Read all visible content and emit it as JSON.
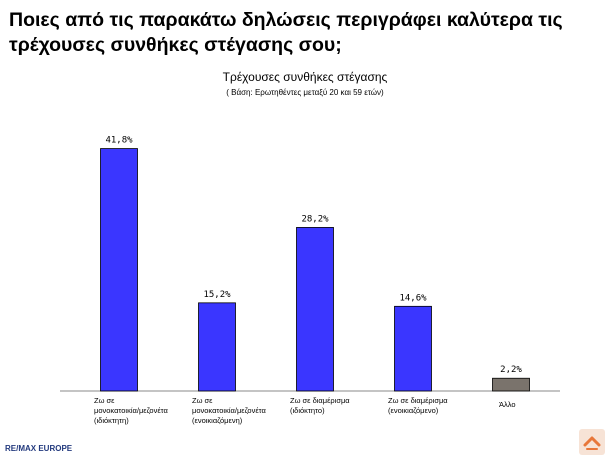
{
  "page": {
    "question": "Ποιες από τις παρακάτω  δηλώσεις περιγράφει καλύτερα τις τρέχουσες συνθήκες στέγασης σου;",
    "footer": "RE/MAX EUROPE"
  },
  "chart_data": {
    "type": "bar",
    "title": "Τρέχουσες συνθήκες στέγασης",
    "subtitle": "( Βάση: Ερωτηθέντες μεταξύ 20 και 59 ετών)",
    "categories": [
      [
        "Ζω σε",
        "μονοκατοικία/μεζονέτα",
        "(ιδιόκτητη)"
      ],
      [
        "Ζω σε",
        "μονοκατοικία/μεζονέτα",
        "(ενοικιαζόμενη)"
      ],
      [
        "Ζω σε διαμέρισμα",
        "(ιδιόκτητο)"
      ],
      [
        "Ζω σε διαμέρισμα",
        "(ενοικιαζόμενο)"
      ],
      [
        "Άλλο"
      ]
    ],
    "values": [
      41.8,
      15.2,
      28.2,
      14.6,
      2.2
    ],
    "data_labels": [
      "41,8%",
      "15,2%",
      "28,2%",
      "14,6%",
      "2,2%"
    ],
    "bar_colors": [
      "#3a36ff",
      "#3a36ff",
      "#3a36ff",
      "#3a36ff",
      "#7a736c"
    ],
    "ylim": [
      0,
      45
    ],
    "grid": false
  }
}
